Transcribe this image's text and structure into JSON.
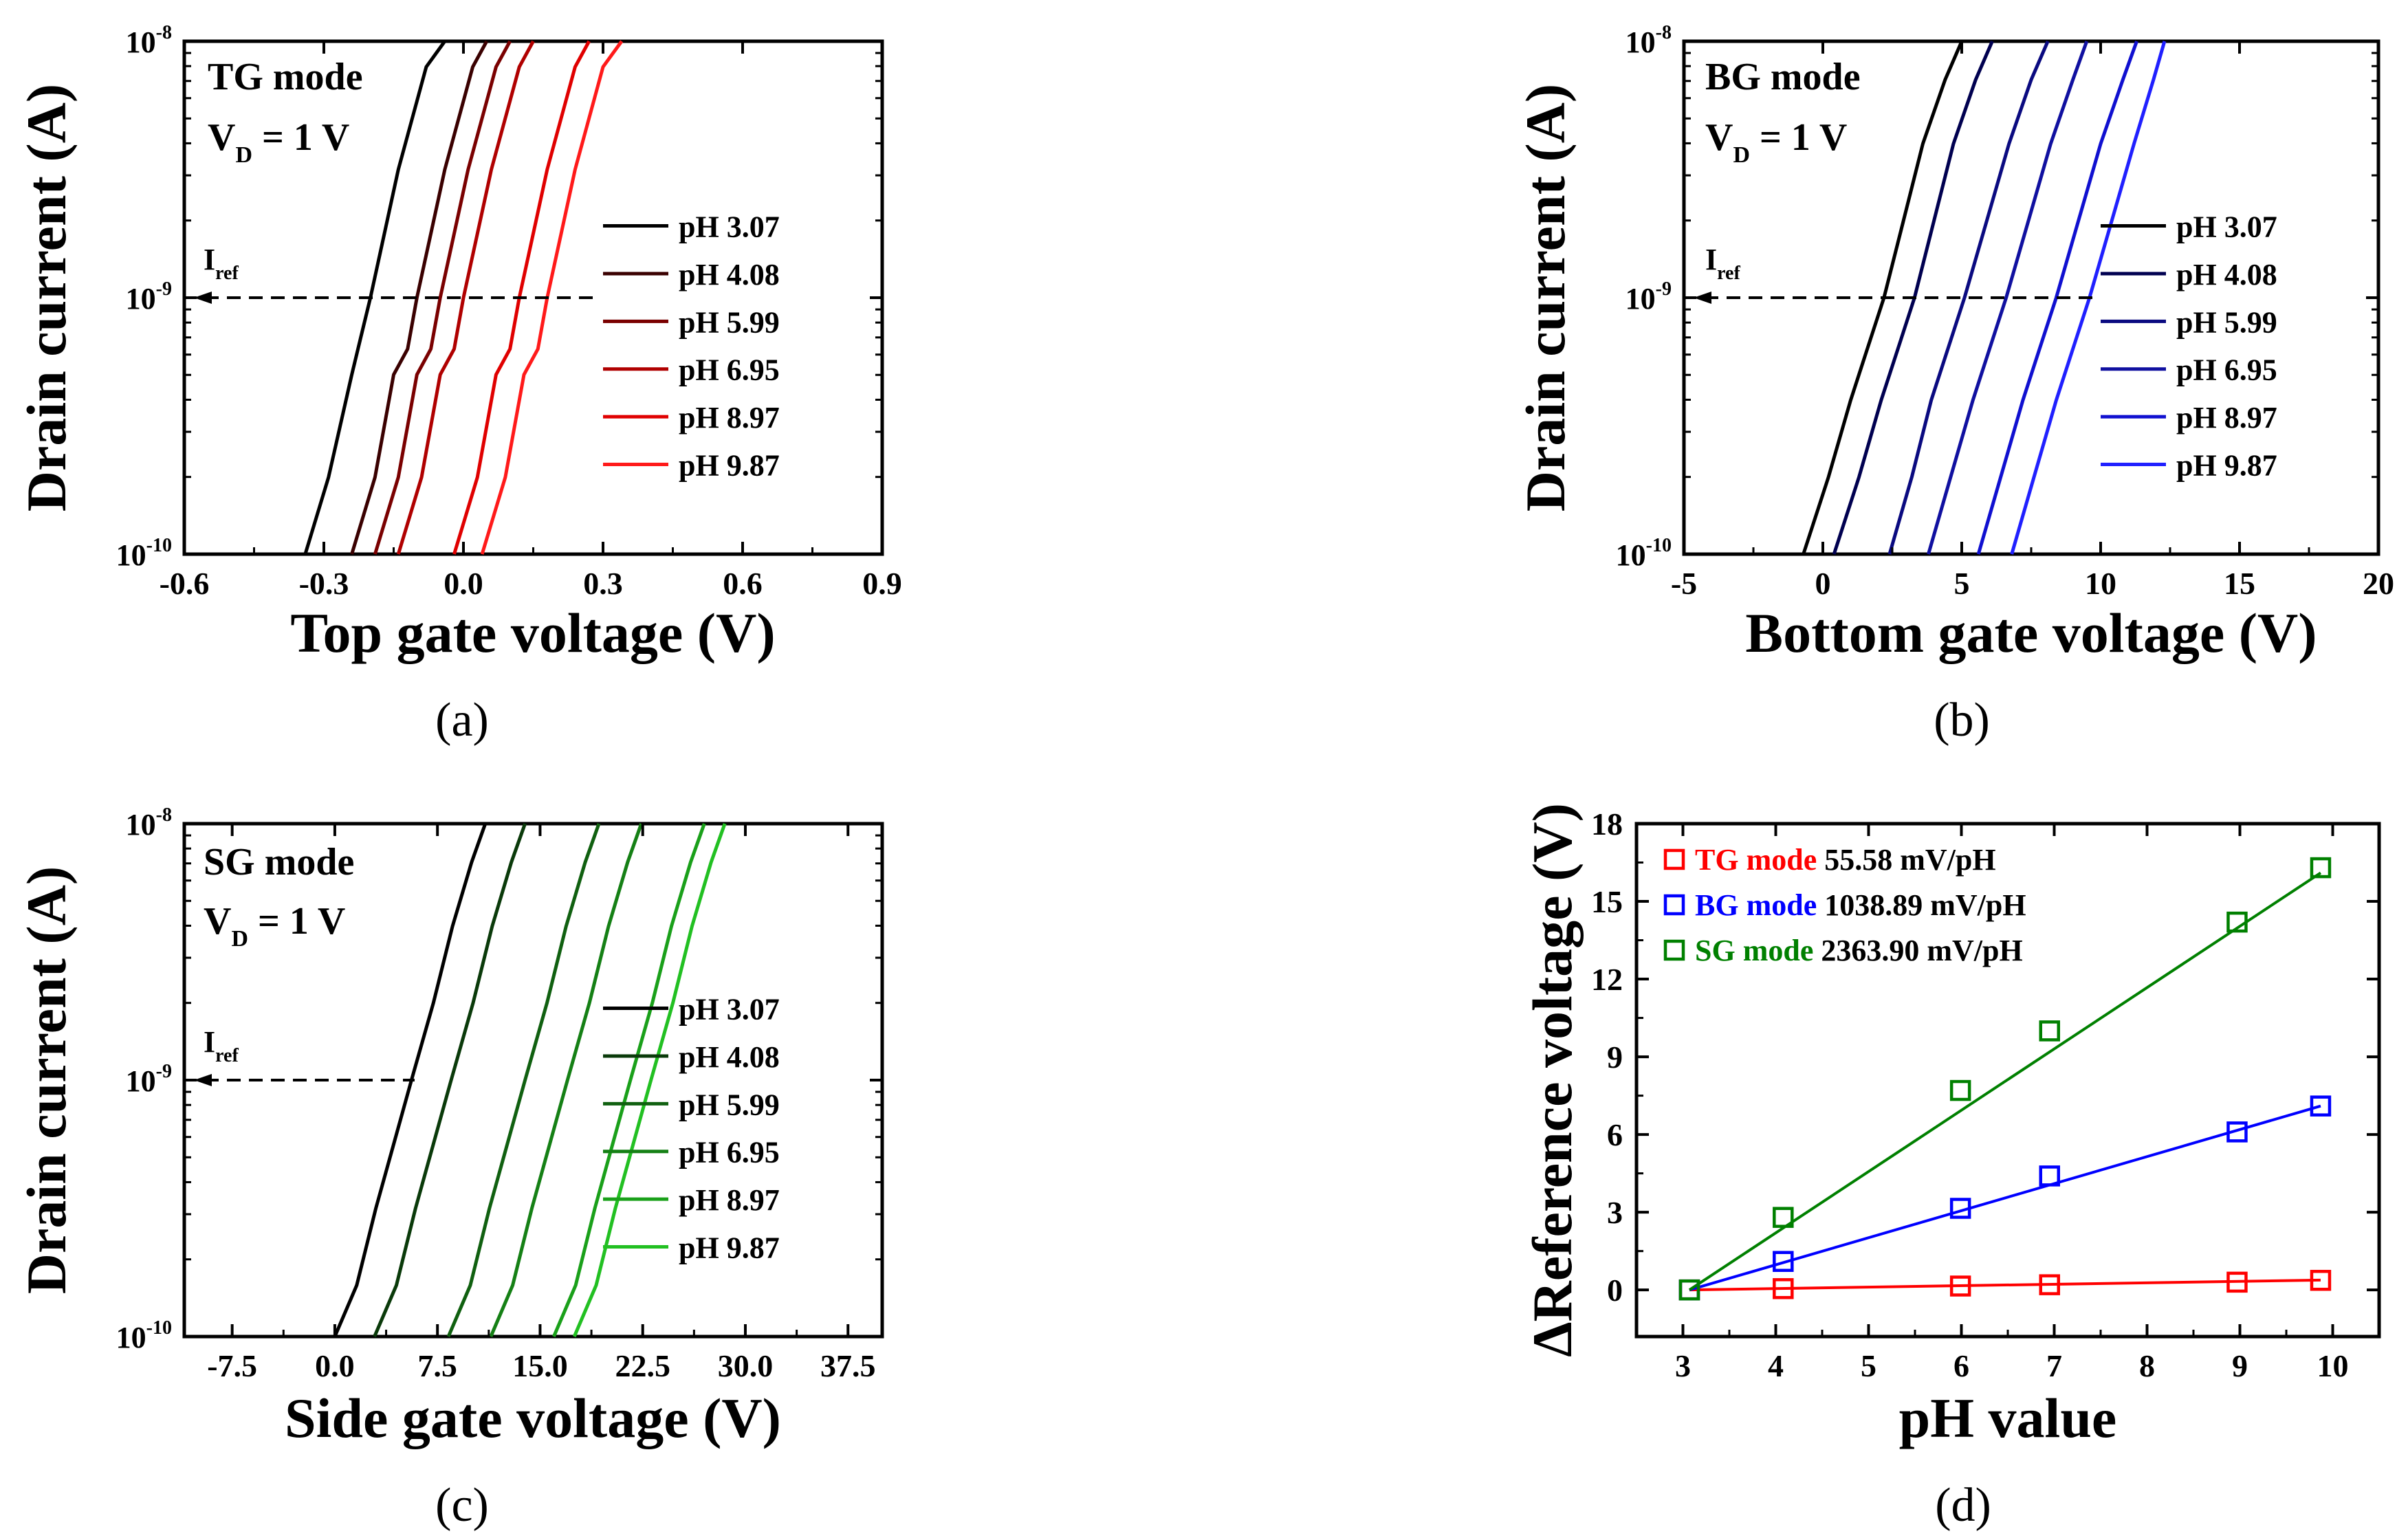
{
  "chart_data": [
    {
      "panel": "a",
      "type": "line",
      "caption": "(a)",
      "title": "TG mode",
      "vd_main": "V",
      "vd_sub": "D",
      "vd_rest": " = 1 V",
      "xlabel": "Top gate voltage (V)",
      "ylabel": "Drain current (A)",
      "xlim": [
        -0.6,
        0.9
      ],
      "xticks": [
        -0.6,
        -0.3,
        0.0,
        0.3,
        0.6,
        0.9
      ],
      "xtick_labels": [
        "-0.6",
        "-0.3",
        "0.0",
        "0.3",
        "0.6",
        "0.9"
      ],
      "ylim_log": [
        -10,
        -8
      ],
      "ytick_bases": [
        "10",
        "10",
        "10"
      ],
      "ytick_exps": [
        "-10",
        "-9",
        "-8"
      ],
      "iref": {
        "label_main": "I",
        "label_sub": "ref",
        "y_log": -9
      },
      "series": [
        {
          "name": "pH 3.07",
          "color": "#000000",
          "x": [
            -0.34,
            -0.29,
            -0.24,
            -0.22,
            -0.2,
            -0.17,
            -0.14,
            -0.11,
            -0.08,
            -0.04
          ],
          "y_log": [
            -10,
            -9.7,
            -9.3,
            -9.15,
            -9.0,
            -8.75,
            -8.5,
            -8.3,
            -8.1,
            -8.0
          ]
        },
        {
          "name": "pH 4.08",
          "color": "#3a0000",
          "x": [
            -0.24,
            -0.19,
            -0.15,
            -0.12,
            -0.1,
            -0.07,
            -0.04,
            -0.01,
            0.02,
            0.05
          ],
          "y_log": [
            -10,
            -9.7,
            -9.3,
            -9.2,
            -9.0,
            -8.75,
            -8.5,
            -8.3,
            -8.1,
            -8.0
          ]
        },
        {
          "name": "pH 5.99",
          "color": "#7a0000",
          "x": [
            -0.19,
            -0.14,
            -0.1,
            -0.07,
            -0.05,
            -0.02,
            0.01,
            0.04,
            0.07,
            0.1
          ],
          "y_log": [
            -10,
            -9.7,
            -9.3,
            -9.2,
            -9.0,
            -8.75,
            -8.5,
            -8.3,
            -8.1,
            -8.0
          ]
        },
        {
          "name": "pH 6.95",
          "color": "#b00000",
          "x": [
            -0.14,
            -0.09,
            -0.05,
            -0.02,
            0.0,
            0.03,
            0.06,
            0.09,
            0.12,
            0.15
          ],
          "y_log": [
            -10,
            -9.7,
            -9.3,
            -9.2,
            -9.0,
            -8.75,
            -8.5,
            -8.3,
            -8.1,
            -8.0
          ]
        },
        {
          "name": "pH 8.97",
          "color": "#e00000",
          "x": [
            -0.02,
            0.03,
            0.07,
            0.1,
            0.12,
            0.15,
            0.18,
            0.21,
            0.24,
            0.27
          ],
          "y_log": [
            -10,
            -9.7,
            -9.3,
            -9.2,
            -9.0,
            -8.75,
            -8.5,
            -8.3,
            -8.1,
            -8.0
          ]
        },
        {
          "name": "pH 9.87",
          "color": "#ff1a1a",
          "x": [
            0.04,
            0.09,
            0.13,
            0.16,
            0.18,
            0.21,
            0.24,
            0.27,
            0.3,
            0.34
          ],
          "y_log": [
            -10,
            -9.7,
            -9.3,
            -9.2,
            -9.0,
            -8.75,
            -8.5,
            -8.3,
            -8.1,
            -8.0
          ]
        }
      ]
    },
    {
      "panel": "b",
      "type": "line",
      "caption": "(b)",
      "title": "BG mode",
      "vd_main": "V",
      "vd_sub": "D",
      "vd_rest": " = 1 V",
      "xlabel": "Bottom gate voltage (V)",
      "ylabel": "Drain current (A)",
      "xlim": [
        -5,
        20
      ],
      "xticks": [
        -5,
        0,
        5,
        10,
        15,
        20
      ],
      "xtick_labels": [
        "-5",
        "0",
        "5",
        "10",
        "15",
        "20"
      ],
      "ylim_log": [
        -10,
        -8
      ],
      "ytick_bases": [
        "10",
        "10",
        "10"
      ],
      "ytick_exps": [
        "-10",
        "-9",
        "-8"
      ],
      "iref": {
        "label_main": "I",
        "label_sub": "ref",
        "y_log": -9
      },
      "series": [
        {
          "name": "pH 3.07",
          "color": "#000000",
          "x": [
            -0.7,
            0.2,
            1.0,
            1.6,
            2.2,
            2.9,
            3.6,
            4.4,
            5.0
          ],
          "y_log": [
            -10,
            -9.7,
            -9.4,
            -9.2,
            -9.0,
            -8.7,
            -8.4,
            -8.15,
            -8.0
          ]
        },
        {
          "name": "pH 4.08",
          "color": "#000050",
          "x": [
            0.4,
            1.3,
            2.1,
            2.7,
            3.3,
            4.0,
            4.7,
            5.5,
            6.1
          ],
          "y_log": [
            -10,
            -9.7,
            -9.4,
            -9.2,
            -9.0,
            -8.7,
            -8.4,
            -8.15,
            -8.0
          ]
        },
        {
          "name": "pH 5.99",
          "color": "#0a0a80",
          "x": [
            2.4,
            3.2,
            3.9,
            4.5,
            5.1,
            5.9,
            6.7,
            7.5,
            8.1
          ],
          "y_log": [
            -10,
            -9.7,
            -9.4,
            -9.2,
            -9.0,
            -8.7,
            -8.4,
            -8.15,
            -8.0
          ]
        },
        {
          "name": "pH 6.95",
          "color": "#1010a0",
          "x": [
            3.8,
            4.6,
            5.4,
            6.0,
            6.6,
            7.4,
            8.2,
            9.0,
            9.5
          ],
          "y_log": [
            -10,
            -9.7,
            -9.4,
            -9.2,
            -9.0,
            -8.7,
            -8.4,
            -8.15,
            -8.0
          ]
        },
        {
          "name": "pH 8.97",
          "color": "#1010d0",
          "x": [
            5.6,
            6.4,
            7.2,
            7.8,
            8.4,
            9.2,
            10.0,
            10.8,
            11.3
          ],
          "y_log": [
            -10,
            -9.7,
            -9.4,
            -9.2,
            -9.0,
            -8.7,
            -8.4,
            -8.15,
            -8.0
          ]
        },
        {
          "name": "pH 9.87",
          "color": "#2020ff",
          "x": [
            6.8,
            7.6,
            8.4,
            9.0,
            9.6,
            10.4,
            11.2,
            11.9,
            12.3
          ],
          "y_log": [
            -10,
            -9.7,
            -9.4,
            -9.2,
            -9.0,
            -8.7,
            -8.4,
            -8.15,
            -8.0
          ]
        }
      ]
    },
    {
      "panel": "c",
      "type": "line",
      "caption": "(c)",
      "title": "SG mode",
      "vd_main": "V",
      "vd_sub": "D",
      "vd_rest": " = 1 V",
      "xlabel": "Side gate voltage (V)",
      "ylabel": "Drain current (A)",
      "xlim": [
        -11,
        40
      ],
      "xticks": [
        -7.5,
        0.0,
        7.5,
        15.0,
        22.5,
        30.0,
        37.5
      ],
      "xtick_labels": [
        "-7.5",
        "0.0",
        "7.5",
        "15.0",
        "22.5",
        "30.0",
        "37.5"
      ],
      "ylim_log": [
        -10,
        -8
      ],
      "ytick_bases": [
        "10",
        "10",
        "10"
      ],
      "ytick_exps": [
        "-10",
        "-9",
        "-8"
      ],
      "iref": {
        "label_main": "I",
        "label_sub": "ref",
        "y_log": -9
      },
      "series": [
        {
          "name": "pH 3.07",
          "color": "#000000",
          "x": [
            0.0,
            1.6,
            3.0,
            4.3,
            5.6,
            7.2,
            8.6,
            10.0,
            11.0
          ],
          "y_log": [
            -10,
            -9.8,
            -9.5,
            -9.25,
            -9.0,
            -8.7,
            -8.4,
            -8.15,
            -8.0
          ]
        },
        {
          "name": "pH 4.08",
          "color": "#0a3a0a",
          "x": [
            2.9,
            4.5,
            5.9,
            7.2,
            8.5,
            10.1,
            11.5,
            12.9,
            13.9
          ],
          "y_log": [
            -10,
            -9.8,
            -9.5,
            -9.25,
            -9.0,
            -8.7,
            -8.4,
            -8.15,
            -8.0
          ]
        },
        {
          "name": "pH 5.99",
          "color": "#106010",
          "x": [
            8.3,
            9.9,
            11.3,
            12.6,
            13.9,
            15.5,
            16.9,
            18.3,
            19.3
          ],
          "y_log": [
            -10,
            -9.8,
            -9.5,
            -9.25,
            -9.0,
            -8.7,
            -8.4,
            -8.15,
            -8.0
          ]
        },
        {
          "name": "pH 6.95",
          "color": "#158015",
          "x": [
            11.4,
            13.0,
            14.4,
            15.7,
            17.0,
            18.6,
            20.0,
            21.4,
            22.4
          ],
          "y_log": [
            -10,
            -9.8,
            -9.5,
            -9.25,
            -9.0,
            -8.7,
            -8.4,
            -8.15,
            -8.0
          ]
        },
        {
          "name": "pH 8.97",
          "color": "#1aa01a",
          "x": [
            16.0,
            17.6,
            19.0,
            20.3,
            21.6,
            23.2,
            24.6,
            26.0,
            27.0
          ],
          "y_log": [
            -10,
            -9.8,
            -9.5,
            -9.25,
            -9.0,
            -8.7,
            -8.4,
            -8.15,
            -8.0
          ]
        },
        {
          "name": "pH 9.87",
          "color": "#22c022",
          "x": [
            17.5,
            19.1,
            20.5,
            21.8,
            23.1,
            24.7,
            26.1,
            27.5,
            28.5
          ],
          "y_log": [
            -10,
            -9.8,
            -9.5,
            -9.25,
            -9.0,
            -8.7,
            -8.4,
            -8.15,
            -8.0
          ]
        }
      ]
    },
    {
      "panel": "d",
      "type": "scatter",
      "caption": "(d)",
      "xlabel": "pH value",
      "ylabel": "ΔReference voltage (V)",
      "xlim": [
        2.5,
        10.5
      ],
      "ylim": [
        -1.8,
        18
      ],
      "xticks": [
        3,
        4,
        5,
        6,
        7,
        8,
        9,
        10
      ],
      "xtick_labels": [
        "3",
        "4",
        "5",
        "6",
        "7",
        "8",
        "9",
        "10"
      ],
      "yticks": [
        0,
        3,
        6,
        9,
        12,
        15,
        18
      ],
      "ytick_labels": [
        "0",
        "3",
        "6",
        "9",
        "12",
        "15",
        "18"
      ],
      "series": [
        {
          "name": "TG mode",
          "sensitivity": "55.58 mV/pH",
          "color": "#ff0000",
          "x": [
            3.07,
            4.08,
            5.99,
            6.95,
            8.97,
            9.87
          ],
          "y": [
            0.0,
            0.05,
            0.15,
            0.2,
            0.3,
            0.37
          ],
          "fit": [
            [
              3.07,
              0.0
            ],
            [
              9.87,
              0.38
            ]
          ]
        },
        {
          "name": "BG mode",
          "sensitivity": "1038.89 mV/pH",
          "color": "#0000ff",
          "x": [
            3.07,
            4.08,
            5.99,
            6.95,
            8.97,
            9.87
          ],
          "y": [
            0.0,
            1.1,
            3.15,
            4.4,
            6.1,
            7.1
          ],
          "fit": [
            [
              3.07,
              0.0
            ],
            [
              9.87,
              7.1
            ]
          ]
        },
        {
          "name": "SG mode",
          "sensitivity": "2363.90 mV/pH",
          "color": "#008000",
          "x": [
            3.07,
            4.08,
            5.99,
            6.95,
            8.97,
            9.87
          ],
          "y": [
            0.0,
            2.8,
            7.7,
            10.0,
            14.2,
            16.3
          ],
          "fit": [
            [
              3.07,
              0.0
            ],
            [
              9.87,
              16.1
            ]
          ]
        }
      ]
    }
  ]
}
